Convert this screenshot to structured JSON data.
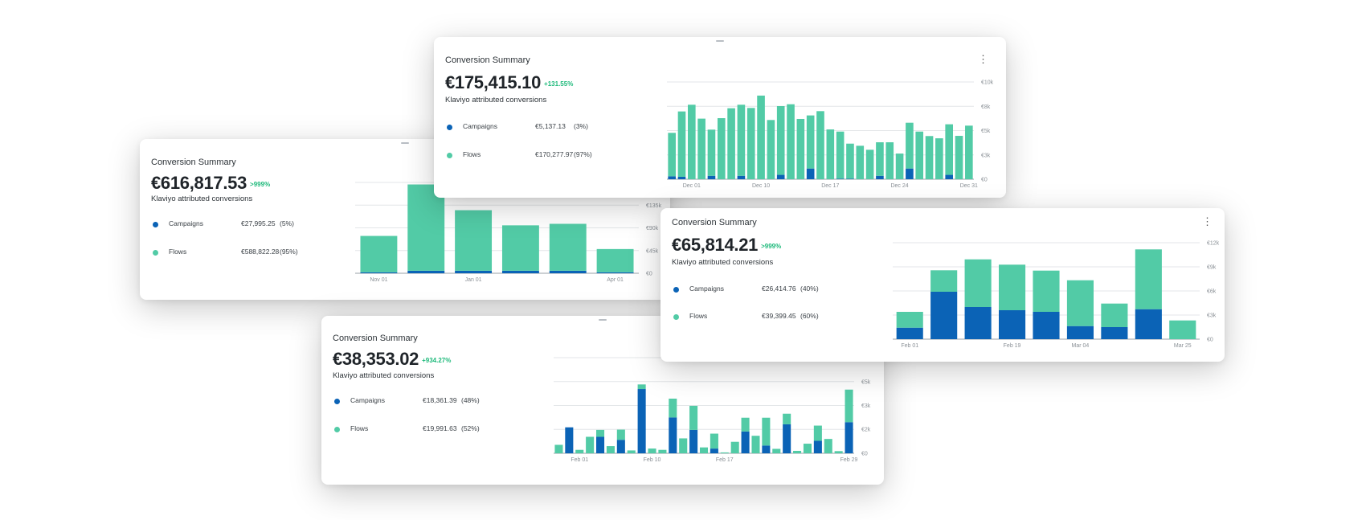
{
  "colors": {
    "campaigns": "#0b63b6",
    "flows": "#52cba6",
    "change": "#1db97a",
    "grid": "#e3e6e8"
  },
  "cards": [
    {
      "title": "Conversion Summary",
      "total": "€616,817.53",
      "change": ">999%",
      "subtitle": "Klaviyo attributed conversions",
      "legend": [
        {
          "label": "Campaigns",
          "value": "€27,995.25",
          "pct": "(5%)"
        },
        {
          "label": "Flows",
          "value": "€588,822.28",
          "pct": "(95%)"
        }
      ]
    },
    {
      "title": "Conversion Summary",
      "total": "€38,353.02",
      "change": "+934.27%",
      "subtitle": "Klaviyo attributed conversions",
      "legend": [
        {
          "label": "Campaigns",
          "value": "€18,361.39",
          "pct": "(48%)"
        },
        {
          "label": "Flows",
          "value": "€19,991.63",
          "pct": "(52%)"
        }
      ]
    },
    {
      "title": "Conversion Summary",
      "total": "€175,415.10",
      "change": "+131.55%",
      "subtitle": "Klaviyo attributed conversions",
      "legend": [
        {
          "label": "Campaigns",
          "value": "€5,137.13",
          "pct": "(3%)"
        },
        {
          "label": "Flows",
          "value": "€170,277.97",
          "pct": "(97%)"
        }
      ]
    },
    {
      "title": "Conversion Summary",
      "total": "€65,814.21",
      "change": ">999%",
      "subtitle": "Klaviyo attributed conversions",
      "legend": [
        {
          "label": "Campaigns",
          "value": "€26,414.76",
          "pct": "(40%)"
        },
        {
          "label": "Flows",
          "value": "€39,399.45",
          "pct": "(60%)"
        }
      ]
    }
  ],
  "chart_data": [
    {
      "type": "bar",
      "stacked": true,
      "x_ticks": [
        {
          "index": 0,
          "label": "Nov 01"
        },
        {
          "index": 2,
          "label": "Jan 01"
        },
        {
          "index": 5,
          "label": "Apr 01"
        }
      ],
      "y_ticks": [
        0,
        45000,
        90000,
        135000,
        180000
      ],
      "y_labels": [
        "€0",
        "€45k",
        "€90k",
        "€135k",
        ""
      ],
      "ylim": [
        0,
        180000
      ],
      "series": [
        {
          "name": "Campaigns",
          "values": [
            2000,
            5000,
            5000,
            5000,
            5000,
            2000
          ]
        },
        {
          "name": "Flows",
          "values": [
            72000,
            171000,
            120000,
            90000,
            93000,
            46000
          ]
        }
      ]
    },
    {
      "type": "bar",
      "stacked": true,
      "x_ticks": [
        {
          "index": 2,
          "label": "Feb 01"
        },
        {
          "index": 9,
          "label": "Feb 10"
        },
        {
          "index": 16,
          "label": "Feb 17"
        },
        {
          "index": 28,
          "label": "Feb 29"
        }
      ],
      "y_ticks": [
        0,
        1667,
        3333,
        5000,
        6667
      ],
      "y_labels": [
        "€0",
        "€2k",
        "€3k",
        "€5k",
        ""
      ],
      "ylim": [
        0,
        6667
      ],
      "series": [
        {
          "name": "Campaigns",
          "values": [
            0,
            1810,
            0,
            0,
            1150,
            0,
            940,
            0,
            4480,
            0,
            0,
            2500,
            0,
            1630,
            0,
            330,
            0,
            0,
            1520,
            0,
            540,
            0,
            2020,
            0,
            0,
            870,
            0,
            0,
            2170
          ]
        },
        {
          "name": "Flows",
          "values": [
            590,
            0,
            240,
            1150,
            480,
            500,
            710,
            200,
            320,
            330,
            240,
            1310,
            1040,
            1680,
            410,
            1040,
            60,
            800,
            960,
            1220,
            1940,
            310,
            740,
            170,
            670,
            1060,
            1000,
            150,
            2270
          ]
        }
      ]
    },
    {
      "type": "bar",
      "stacked": true,
      "x_ticks": [
        {
          "index": 2,
          "label": "Dec 01"
        },
        {
          "index": 9,
          "label": "Dec 10"
        },
        {
          "index": 16,
          "label": "Dec 17"
        },
        {
          "index": 23,
          "label": "Dec 24"
        },
        {
          "index": 30,
          "label": "Dec 31"
        }
      ],
      "y_ticks": [
        0,
        2500,
        5000,
        7500,
        10000
      ],
      "y_labels": [
        "€0",
        "€3k",
        "€5k",
        "€8k",
        "€10k"
      ],
      "ylim": [
        0,
        10000
      ],
      "series": [
        {
          "name": "Campaigns",
          "values": [
            300,
            250,
            0,
            0,
            350,
            0,
            0,
            350,
            0,
            0,
            0,
            450,
            0,
            0,
            1100,
            0,
            0,
            50,
            50,
            0,
            0,
            350,
            0,
            0,
            1100,
            0,
            0,
            0,
            450,
            0,
            0
          ]
        },
        {
          "name": "Flows",
          "values": [
            4470,
            6720,
            7660,
            6230,
            4750,
            6280,
            7300,
            7310,
            7330,
            8600,
            6090,
            7070,
            7710,
            6200,
            5460,
            7000,
            5120,
            4850,
            3610,
            3440,
            3030,
            3450,
            3800,
            2640,
            4710,
            4900,
            4440,
            4210,
            5200,
            4460,
            5510
          ]
        }
      ]
    },
    {
      "type": "bar",
      "stacked": true,
      "x_ticks": [
        {
          "index": 0,
          "label": "Feb 01"
        },
        {
          "index": 3,
          "label": "Feb 19"
        },
        {
          "index": 5,
          "label": "Mar 04"
        },
        {
          "index": 8,
          "label": "Mar 25"
        }
      ],
      "y_ticks": [
        0,
        3000,
        6000,
        9000,
        12000
      ],
      "y_labels": [
        "€0",
        "€3k",
        "€6k",
        "€9k",
        "€12k"
      ],
      "ylim": [
        0,
        12000
      ],
      "series": [
        {
          "name": "Campaigns",
          "values": [
            1430,
            5900,
            4000,
            3600,
            3400,
            1630,
            1500,
            3730,
            0
          ]
        },
        {
          "name": "Flows",
          "values": [
            1970,
            2670,
            5930,
            5670,
            5130,
            5700,
            2930,
            7440,
            2330
          ]
        }
      ]
    }
  ]
}
